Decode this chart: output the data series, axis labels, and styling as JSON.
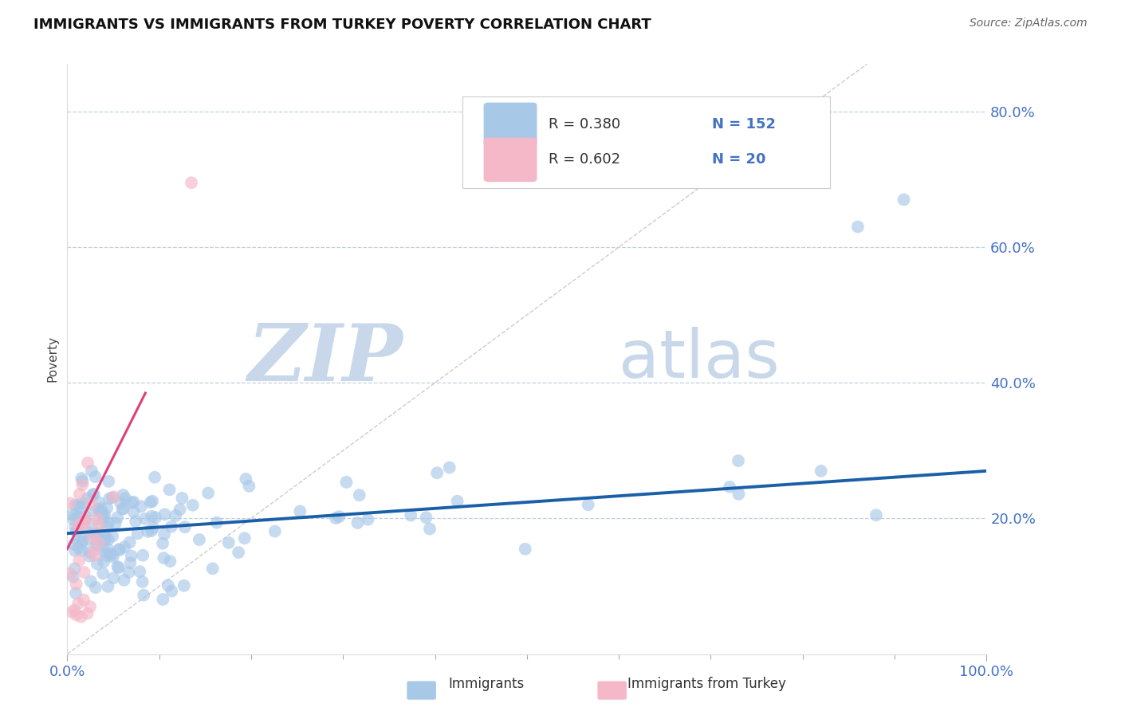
{
  "title": "IMMIGRANTS VS IMMIGRANTS FROM TURKEY POVERTY CORRELATION CHART",
  "source": "Source: ZipAtlas.com",
  "ylabel": "Poverty",
  "blue_R": 0.38,
  "blue_N": 152,
  "pink_R": 0.602,
  "pink_N": 20,
  "blue_color": "#a8c8e8",
  "blue_line_color": "#1a5fa8",
  "pink_color": "#f4b8c8",
  "pink_line_color": "#e0407a",
  "blue_scatter_alpha": 0.65,
  "pink_scatter_alpha": 0.65,
  "watermark_zip_color": "#c8d8ea",
  "watermark_atlas_color": "#c8d8ea",
  "background_color": "#ffffff",
  "grid_color": "#c0d0e0",
  "title_color": "#111111",
  "source_color": "#666666",
  "tick_color": "#4472c4",
  "legend_text_color": "#333333",
  "legend_num_color": "#4472c4",
  "blue_trend_x0": 0.0,
  "blue_trend_y0": 0.178,
  "blue_trend_x1": 1.0,
  "blue_trend_y1": 0.27,
  "pink_trend_x0": 0.0,
  "pink_trend_y0": 0.155,
  "pink_trend_x1": 0.085,
  "pink_trend_y1": 0.385,
  "diag_color": "#cccccc",
  "xlim": [
    0.0,
    1.0
  ],
  "ylim": [
    0.0,
    0.87
  ],
  "y_ticks": [
    0.2,
    0.4,
    0.6,
    0.8
  ],
  "y_tick_labels": [
    "20.0%",
    "40.0%",
    "60.0%",
    "80.0%"
  ],
  "x_ticks": [
    0.0,
    1.0
  ],
  "x_tick_labels": [
    "0.0%",
    "100.0%"
  ]
}
